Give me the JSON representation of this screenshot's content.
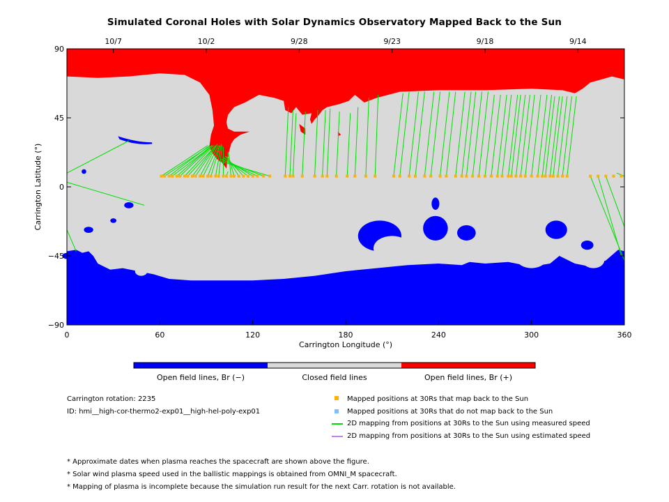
{
  "chart_data": {
    "type": "heatmap",
    "title": "Simulated Coronal Holes with Solar Dynamics Observatory Mapped Back to the Sun",
    "xlabel": "Carrington Longitude (°)",
    "ylabel": "Carrington Latitude (°)",
    "xlim": [
      0,
      360
    ],
    "ylim": [
      -90,
      90
    ],
    "x_ticks": [
      0,
      60,
      120,
      180,
      240,
      300,
      360
    ],
    "y_ticks": [
      -90,
      -45,
      0,
      45,
      90
    ],
    "top_date_ticks": [
      {
        "label": "10/7",
        "lon": 30
      },
      {
        "label": "10/2",
        "lon": 90
      },
      {
        "label": "9/28",
        "lon": 150
      },
      {
        "label": "9/23",
        "lon": 210
      },
      {
        "label": "9/18",
        "lon": 270
      },
      {
        "label": "9/14",
        "lon": 330
      }
    ],
    "colors": {
      "open_negative": "#0000ff",
      "closed": "#d9d9d9",
      "open_positive": "#ff0000",
      "mapped_point": "#ffb000",
      "unmapped_point": "#7fbfff",
      "measured_line": "#00dd00",
      "estimated_line": "#c080ff"
    },
    "colorbar": {
      "labels": [
        "Open field lines, Br (−)",
        "Closed field lines",
        "Open field lines, Br (+)"
      ]
    },
    "series": [
      {
        "name": "Mapped positions at 30Rs that map back to the Sun"
      },
      {
        "name": "Mapped positions at 30Rs that do not map back to the Sun"
      },
      {
        "name": "2D mapping from positions at 30Rs to the Sun using measured speed"
      },
      {
        "name": "2D mapping from positions at 30Rs to the Sun using estimated speed"
      }
    ],
    "mapped_positions_lat": 7,
    "mappings": [
      [
        61,
        27
      ],
      [
        63,
        26
      ],
      [
        66,
        27
      ],
      [
        68,
        26
      ],
      [
        71,
        27
      ],
      [
        73,
        27
      ],
      [
        76,
        27
      ],
      [
        78,
        26
      ],
      [
        81,
        27
      ],
      [
        83,
        27
      ],
      [
        86,
        28
      ],
      [
        88,
        27
      ],
      [
        91,
        27
      ],
      [
        93,
        27
      ],
      [
        96,
        28
      ],
      [
        98,
        27
      ],
      [
        101,
        26
      ],
      [
        103,
        10
      ],
      [
        106,
        23
      ],
      [
        108,
        22
      ],
      [
        111,
        20
      ],
      [
        114,
        20
      ],
      [
        117,
        19
      ],
      [
        120,
        19
      ],
      [
        123,
        18
      ],
      [
        127,
        18
      ],
      [
        131,
        17
      ],
      [
        141,
        52
      ],
      [
        144,
        50
      ],
      [
        146,
        48
      ],
      [
        152,
        49
      ],
      [
        160,
        50
      ],
      [
        165,
        50
      ],
      [
        168,
        51
      ],
      [
        174,
        49
      ],
      [
        181,
        48
      ],
      [
        186,
        52
      ],
      [
        193,
        58
      ],
      [
        199,
        60
      ],
      [
        211,
        61
      ],
      [
        215,
        62
      ],
      [
        221,
        62
      ],
      [
        225,
        62
      ],
      [
        231,
        62
      ],
      [
        235,
        62
      ],
      [
        241,
        62
      ],
      [
        245,
        62
      ],
      [
        251,
        62
      ],
      [
        255,
        62
      ],
      [
        258,
        62
      ],
      [
        262,
        62
      ],
      [
        266,
        62
      ],
      [
        270,
        60
      ],
      [
        274,
        60
      ],
      [
        278,
        60
      ],
      [
        281,
        60
      ],
      [
        285,
        60
      ],
      [
        287,
        60
      ],
      [
        290,
        60
      ],
      [
        293,
        60
      ],
      [
        296,
        60
      ],
      [
        300,
        60
      ],
      [
        304,
        60
      ],
      [
        307,
        60
      ],
      [
        309,
        59
      ],
      [
        312,
        59
      ],
      [
        314,
        59
      ],
      [
        317,
        59
      ],
      [
        320,
        59
      ],
      [
        323,
        59
      ],
      [
        0,
        9,
        40,
        30
      ],
      [
        0,
        3,
        50,
        -12
      ],
      [
        0,
        -28,
        6,
        -42
      ],
      [
        338,
        7,
        360,
        -48
      ],
      [
        343,
        7,
        358,
        -45
      ],
      [
        348,
        7,
        360,
        -26
      ],
      [
        360,
        7,
        355,
        9
      ]
    ],
    "unmapped_positions": []
  },
  "info": {
    "carrington_rotation": "Carrington rotation: 2235",
    "run_id": "ID: hmi__high-cor-thermo2-exp01__high-hel-poly-exp01"
  },
  "footnotes": [
    "* Approximate dates when plasma reaches the spacecraft are shown above the figure.",
    "* Solar wind plasma speed used in the ballistic mappings is obtained from OMNI_M spacecraft.",
    "* Mapping of plasma is incomplete because the simulation run result for the next Carr. rotation is not available."
  ]
}
